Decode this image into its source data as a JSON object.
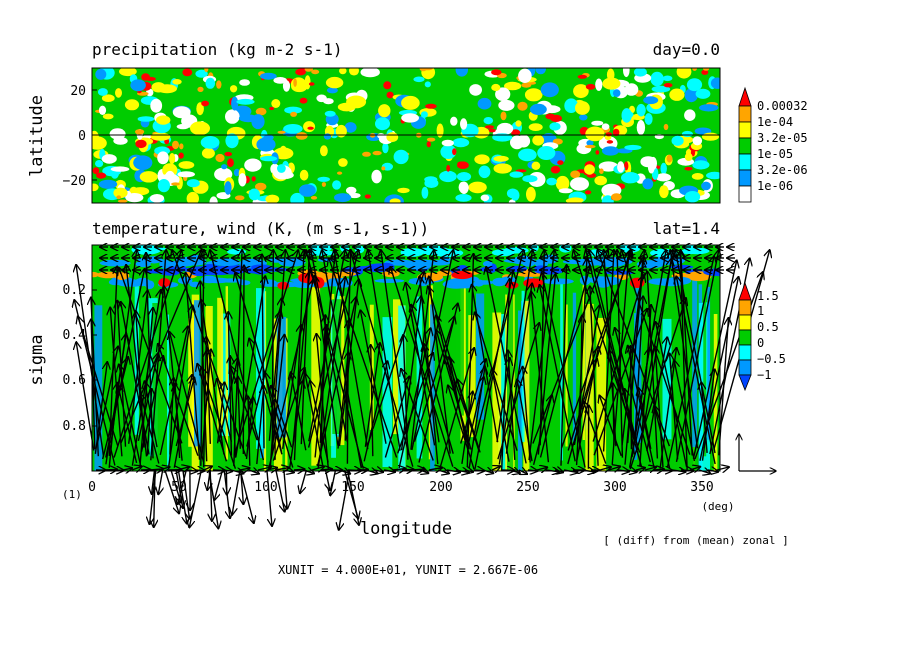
{
  "chart_data": [
    {
      "type": "heatmap",
      "title": "precipitation (kg m-2 s-1)",
      "time_label": "day=0.0",
      "xlabel": "",
      "ylabel": "latitude",
      "xlim": [
        0,
        360
      ],
      "ylim": [
        -30,
        30
      ],
      "yticks": [
        20,
        0,
        -20
      ],
      "colorbar": {
        "levels": [
          "0.00032",
          "1e-04",
          "3.2e-05",
          "1e-05",
          "3.2e-06",
          "1e-06"
        ],
        "colors": [
          "#ff0000",
          "#ffa500",
          "#ffff00",
          "#00cc00",
          "#00ffff",
          "#0099ff",
          "#ffffff"
        ]
      }
    },
    {
      "type": "heatmap",
      "title": "temperature, wind (K, (m s-1, s-1))",
      "lat_label": "lat=1.4",
      "xlabel": "longitude",
      "ylabel": "sigma",
      "xlim": [
        0,
        360
      ],
      "ylim": [
        1.0,
        0.0
      ],
      "xticks": [
        "0",
        "50",
        "100",
        "150",
        "200",
        "250",
        "300",
        "350"
      ],
      "yticks": [
        "0.2",
        "0.4",
        "0.6",
        "0.8"
      ],
      "x_unit_label": "(deg)",
      "corner_label": "(1)",
      "colorbar": {
        "levels": [
          "1.5",
          "1",
          "0.5",
          "0",
          "−0.5",
          "−1"
        ],
        "colors": [
          "#ff0000",
          "#ffa500",
          "#ffff00",
          "#00cc00",
          "#00ffff",
          "#0099ff",
          "#0044ff"
        ]
      }
    }
  ],
  "footer": {
    "note": "[ (diff) from (mean) zonal ]",
    "units": "XUNIT = 4.000E+01, YUNIT = 2.667E-06"
  }
}
